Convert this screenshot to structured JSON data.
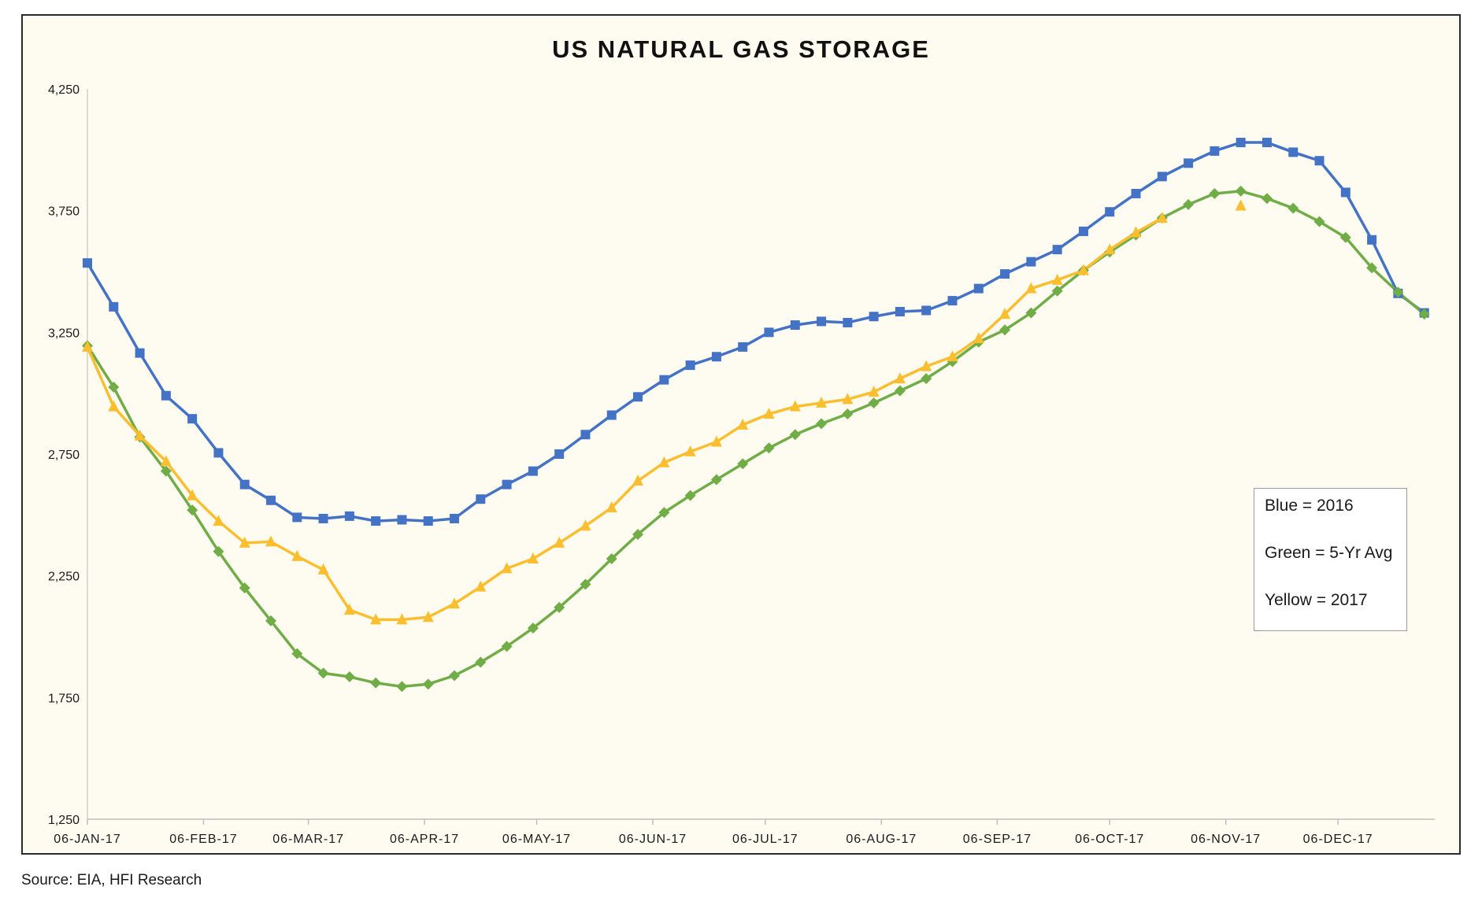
{
  "chart_data": {
    "type": "line",
    "title": "US NATURAL GAS STORAGE",
    "source": "Source: EIA, HFI Research",
    "ylim": [
      1250,
      4250
    ],
    "yticks": [
      1250,
      1750,
      2250,
      2750,
      3250,
      3750,
      4250
    ],
    "ytick_labels": [
      "1,250",
      "1,750",
      "2,250",
      "2,750",
      "3,250",
      "3,750",
      "4,250"
    ],
    "xticks": [
      {
        "week": 0,
        "label": "06-JAN-17"
      },
      {
        "week": 4.43,
        "label": "06-FEB-17"
      },
      {
        "week": 8.43,
        "label": "06-MAR-17"
      },
      {
        "week": 12.86,
        "label": "06-APR-17"
      },
      {
        "week": 17.14,
        "label": "06-MAY-17"
      },
      {
        "week": 21.57,
        "label": "06-JUN-17"
      },
      {
        "week": 25.86,
        "label": "06-JUL-17"
      },
      {
        "week": 30.29,
        "label": "06-AUG-17"
      },
      {
        "week": 34.71,
        "label": "06-SEP-17"
      },
      {
        "week": 39,
        "label": "06-OCT-17"
      },
      {
        "week": 43.43,
        "label": "06-NOV-17"
      },
      {
        "week": 47.71,
        "label": "06-DEC-17"
      }
    ],
    "x_weeks_max": 51.4,
    "grid": false,
    "legend_box": [
      "Blue = 2016",
      "Green = 5-Yr Avg",
      "Yellow = 2017"
    ],
    "series": [
      {
        "color": "#4472c4",
        "marker": "square",
        "values": [
          3535,
          3355,
          3165,
          2990,
          2895,
          2755,
          2625,
          2560,
          2490,
          2485,
          2495,
          2475,
          2480,
          2475,
          2485,
          2565,
          2625,
          2680,
          2750,
          2830,
          2910,
          2985,
          3055,
          3115,
          3150,
          3190,
          3250,
          3280,
          3295,
          3290,
          3315,
          3335,
          3340,
          3380,
          3430,
          3490,
          3540,
          3590,
          3665,
          3745,
          3820,
          3890,
          3945,
          3995,
          4030,
          4030,
          3990,
          3955,
          3825,
          3630,
          3410,
          3330
        ]
      },
      {
        "color": "#70ad47",
        "marker": "diamond",
        "values": [
          3195,
          3025,
          2820,
          2680,
          2520,
          2350,
          2200,
          2065,
          1930,
          1850,
          1835,
          1810,
          1795,
          1805,
          1840,
          1895,
          1960,
          2035,
          2120,
          2215,
          2320,
          2420,
          2510,
          2580,
          2645,
          2710,
          2775,
          2830,
          2875,
          2915,
          2960,
          3010,
          3060,
          3130,
          3210,
          3260,
          3330,
          3420,
          3505,
          3580,
          3650,
          3720,
          3775,
          3820,
          3830,
          3800,
          3760,
          3705,
          3640,
          3515,
          3415,
          3325
        ]
      },
      {
        "color": "#fbbe2e",
        "marker": "triangle",
        "values": [
          3190,
          2945,
          2825,
          2720,
          2580,
          2475,
          2385,
          2390,
          2330,
          2275,
          2110,
          2070,
          2070,
          2080,
          2135,
          2205,
          2280,
          2320,
          2385,
          2455,
          2530,
          2640,
          2715,
          2760,
          2800,
          2870,
          2915,
          2945,
          2960,
          2975,
          3005,
          3060,
          3110,
          3150,
          3225,
          3325,
          3430,
          3465,
          3505,
          3590,
          3660,
          3720,
          null,
          null,
          3770
        ]
      }
    ]
  }
}
